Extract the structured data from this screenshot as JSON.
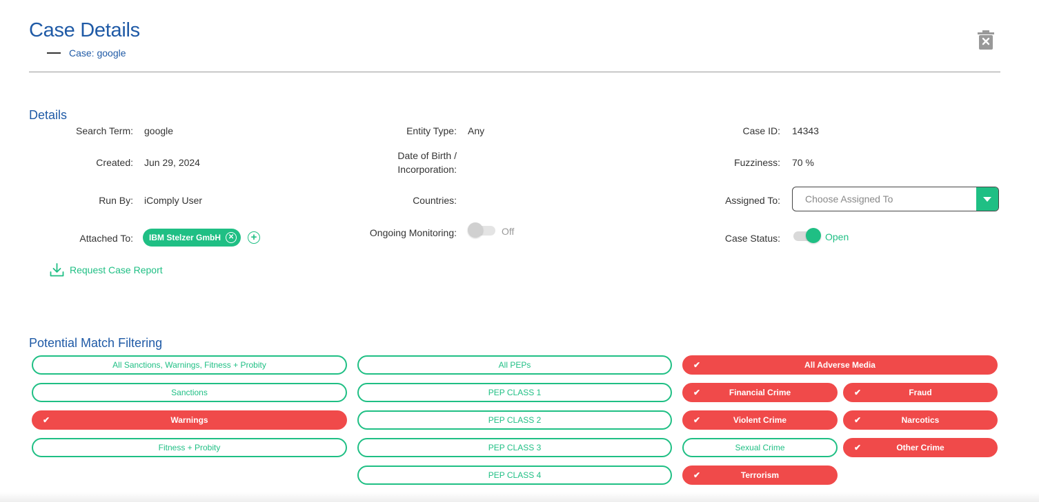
{
  "header": {
    "title": "Case Details",
    "subtitle": "Case: google"
  },
  "details": {
    "section_title": "Details",
    "search_term_label": "Search Term:",
    "search_term_value": "google",
    "created_label": "Created:",
    "created_value": "Jun 29, 2024",
    "run_by_label": "Run By:",
    "run_by_value": "iComply User",
    "attached_to_label": "Attached To:",
    "attached_tag": "IBM Stelzer GmbH",
    "entity_type_label": "Entity Type:",
    "entity_type_value": "Any",
    "dob_label_line1": "Date of Birth /",
    "dob_label_line2": "Incorporation:",
    "countries_label": "Countries:",
    "monitoring_label": "Ongoing Monitoring:",
    "monitoring_state": "Off",
    "case_id_label": "Case ID:",
    "case_id_value": "14343",
    "fuzziness_label": "Fuzziness:",
    "fuzziness_value": "70 %",
    "assigned_label": "Assigned To:",
    "assigned_placeholder": "Choose Assigned To",
    "status_label": "Case Status:",
    "status_value": "Open",
    "report_link": "Request Case Report"
  },
  "filtering": {
    "section_title": "Potential Match Filtering",
    "col1": [
      {
        "label": "All Sanctions, Warnings, Fitness + Probity",
        "active": false
      },
      {
        "label": "Sanctions",
        "active": false
      },
      {
        "label": "Warnings",
        "active": true
      },
      {
        "label": "Fitness + Probity",
        "active": false
      }
    ],
    "col2": [
      {
        "label": "All PEPs",
        "active": false
      },
      {
        "label": "PEP CLASS 1",
        "active": false
      },
      {
        "label": "PEP CLASS 2",
        "active": false
      },
      {
        "label": "PEP CLASS 3",
        "active": false
      },
      {
        "label": "PEP CLASS 4",
        "active": false
      }
    ],
    "adverse_all": {
      "label": "All Adverse Media",
      "active": true
    },
    "col3a": [
      {
        "label": "Financial Crime",
        "active": true
      },
      {
        "label": "Violent Crime",
        "active": true
      },
      {
        "label": "Sexual Crime",
        "active": false
      },
      {
        "label": "Terrorism",
        "active": true
      }
    ],
    "col3b": [
      {
        "label": "Fraud",
        "active": true
      },
      {
        "label": "Narcotics",
        "active": true
      },
      {
        "label": "Other Crime",
        "active": true
      }
    ]
  },
  "colors": {
    "brand_blue": "#1f5aa6",
    "accent_green": "#1fbf84",
    "active_red": "#f04a4a"
  },
  "icons": {
    "delete": "trash-x-icon",
    "download": "download-icon",
    "check": "check-icon"
  }
}
